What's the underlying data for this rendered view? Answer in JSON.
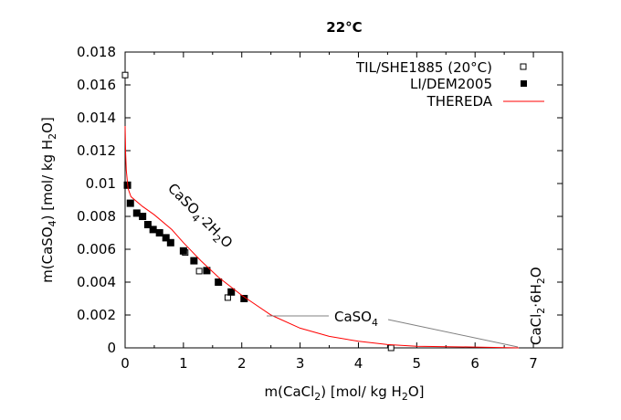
{
  "chart_data": {
    "type": "scatter",
    "title": "22°C",
    "xlabel": "m(CaCl2) [mol/ kg H2O]",
    "ylabel": "m(CaSO4) [mol/ kg H2O]",
    "xlim": [
      0,
      7.5
    ],
    "ylim": [
      0,
      0.018
    ],
    "xticks": [
      "0",
      "1",
      "2",
      "3",
      "4",
      "5",
      "6",
      "7"
    ],
    "yticks": [
      "0",
      "0.002",
      "0.004",
      "0.006",
      "0.008",
      "0.01",
      "0.012",
      "0.014",
      "0.016",
      "0.018"
    ],
    "grid": false,
    "legend_position": "top-right",
    "series": [
      {
        "name": "TIL/SHE1885 (20°C)",
        "marker": "open-square",
        "color": "#000000",
        "x": [
          0,
          1.03,
          1.27,
          1.76,
          4.56
        ],
        "y": [
          0.0166,
          0.0058,
          0.00467,
          0.00306,
          0.0
        ]
      },
      {
        "name": "LI/DEM2005",
        "marker": "filled-square",
        "color": "#000000",
        "x": [
          0.04,
          0.09,
          0.2,
          0.3,
          0.39,
          0.48,
          0.59,
          0.7,
          0.78,
          1.0,
          1.18,
          1.4,
          1.6,
          1.82,
          2.04
        ],
        "y": [
          0.0099,
          0.0088,
          0.0082,
          0.008,
          0.0075,
          0.0072,
          0.007,
          0.0067,
          0.0064,
          0.0059,
          0.0053,
          0.0047,
          0.004,
          0.0034,
          0.003
        ]
      },
      {
        "name": "THEREDA",
        "marker": "line",
        "color": "#ff0000",
        "x": [
          0,
          0.01,
          0.02,
          0.05,
          0.1,
          0.3,
          0.5,
          0.8,
          1.0,
          1.3,
          1.6,
          2.0,
          2.5,
          3.0,
          3.5,
          4.0,
          4.5,
          5.0,
          6.0,
          6.75
        ],
        "y": [
          0.0135,
          0.0118,
          0.0108,
          0.0097,
          0.0092,
          0.0086,
          0.0081,
          0.0072,
          0.0064,
          0.0053,
          0.0043,
          0.0032,
          0.002,
          0.0012,
          0.0007,
          0.0004,
          0.0002,
          0.0001,
          5e-05,
          0.0
        ]
      }
    ],
    "annotations": {
      "gypsum": "CaSO4·2H2O",
      "anhydrite": "CaSO4",
      "antarcticite": "CaCl2·6H2O"
    }
  }
}
